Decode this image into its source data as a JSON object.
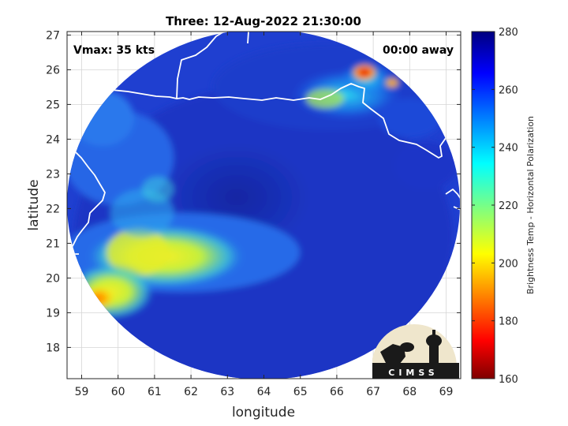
{
  "title": "Three: 12-Aug-2022 21:30:00",
  "vmax_label": "Vmax: 35 kts",
  "time_away_label": "00:00 away",
  "xlabel": "longitude",
  "ylabel": "latitude",
  "x_ticks": [
    "59",
    "60",
    "61",
    "62",
    "63",
    "64",
    "65",
    "66",
    "67",
    "68",
    "69"
  ],
  "y_ticks": [
    "27",
    "26",
    "25",
    "24",
    "23",
    "22",
    "21",
    "20",
    "19",
    "18"
  ],
  "colorbar": {
    "label": "Brightness Temp - Horizontal Polarization",
    "ticks": [
      "280",
      "260",
      "240",
      "220",
      "200",
      "180",
      "160"
    ],
    "range": [
      160,
      280
    ],
    "colormap": "jet"
  },
  "logo_text": "CIMSS",
  "chart_data": {
    "type": "heatmap",
    "title": "Three: 12-Aug-2022 21:30:00",
    "xlabel": "longitude",
    "ylabel": "latitude",
    "xlim": [
      58.6,
      69.4
    ],
    "ylim": [
      17.1,
      27.1
    ],
    "grid": true,
    "colorbar_range": [
      160,
      280
    ],
    "colorbar_label": "Brightness Temp - Horizontal Polarization",
    "storm_center": {
      "lon": 63.5,
      "lat": 22.0
    },
    "features": [
      {
        "name": "cold cluster north-east",
        "lon": 66.7,
        "lat": 25.8,
        "value": 165
      },
      {
        "name": "warm band west",
        "lon": 60.8,
        "lat": 20.7,
        "value": 205
      },
      {
        "name": "cold spot south-west",
        "lon": 59.6,
        "lat": 19.4,
        "value": 185
      },
      {
        "name": "cyan band north-east",
        "lon": 66.0,
        "lat": 25.1,
        "value": 225
      },
      {
        "name": "background ocean",
        "lon": 65.0,
        "lat": 20.0,
        "value": 262
      }
    ]
  },
  "colors": {
    "background": "#ffffff",
    "grid": "#d6d6d6",
    "coastline": "#ffffff",
    "ocean_base": "#1f3fd0"
  }
}
